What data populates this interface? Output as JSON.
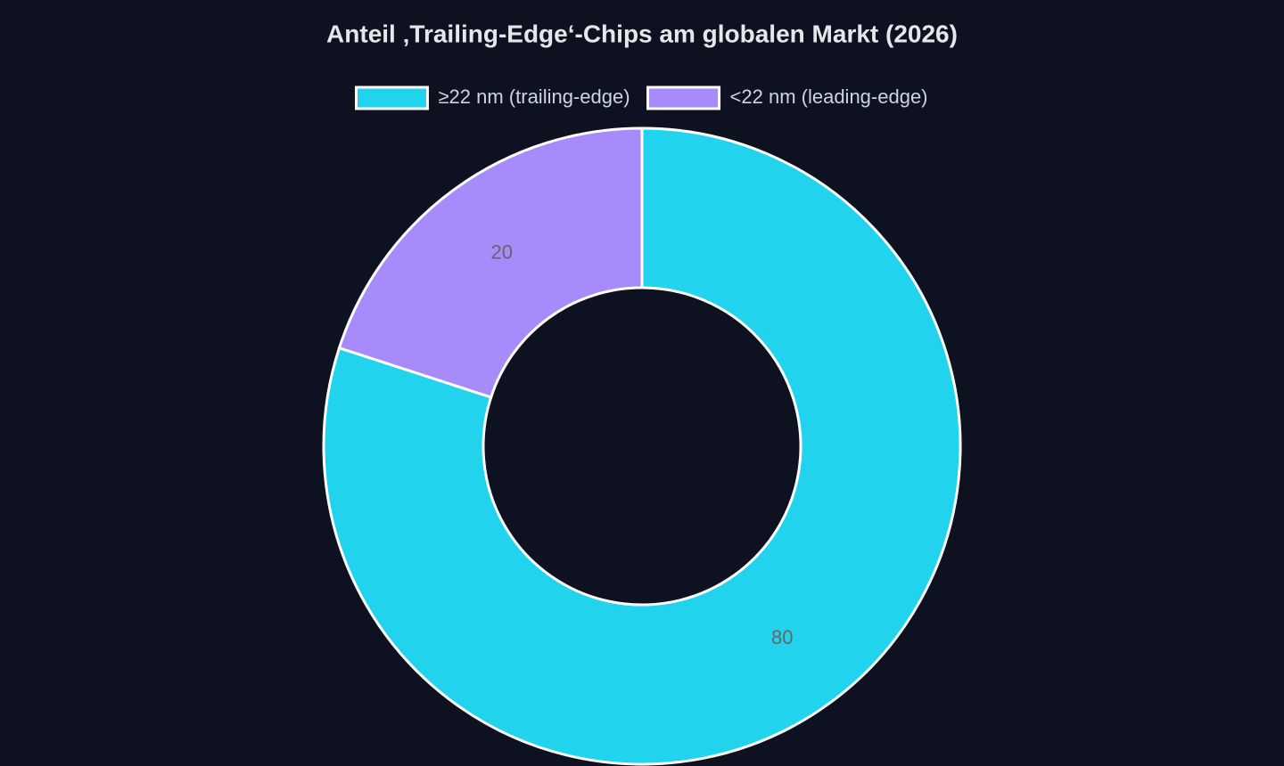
{
  "chart_data": {
    "type": "doughnut",
    "title": "Anteil ‚Trailing-Edge‘-Chips am globalen Markt (2026)",
    "categories": [
      "≥22 nm (trailing-edge)",
      "<22 nm (leading-edge)"
    ],
    "values": [
      80,
      20
    ],
    "colors": [
      "#22d3ee",
      "#a78bfa"
    ],
    "legend": "top"
  }
}
